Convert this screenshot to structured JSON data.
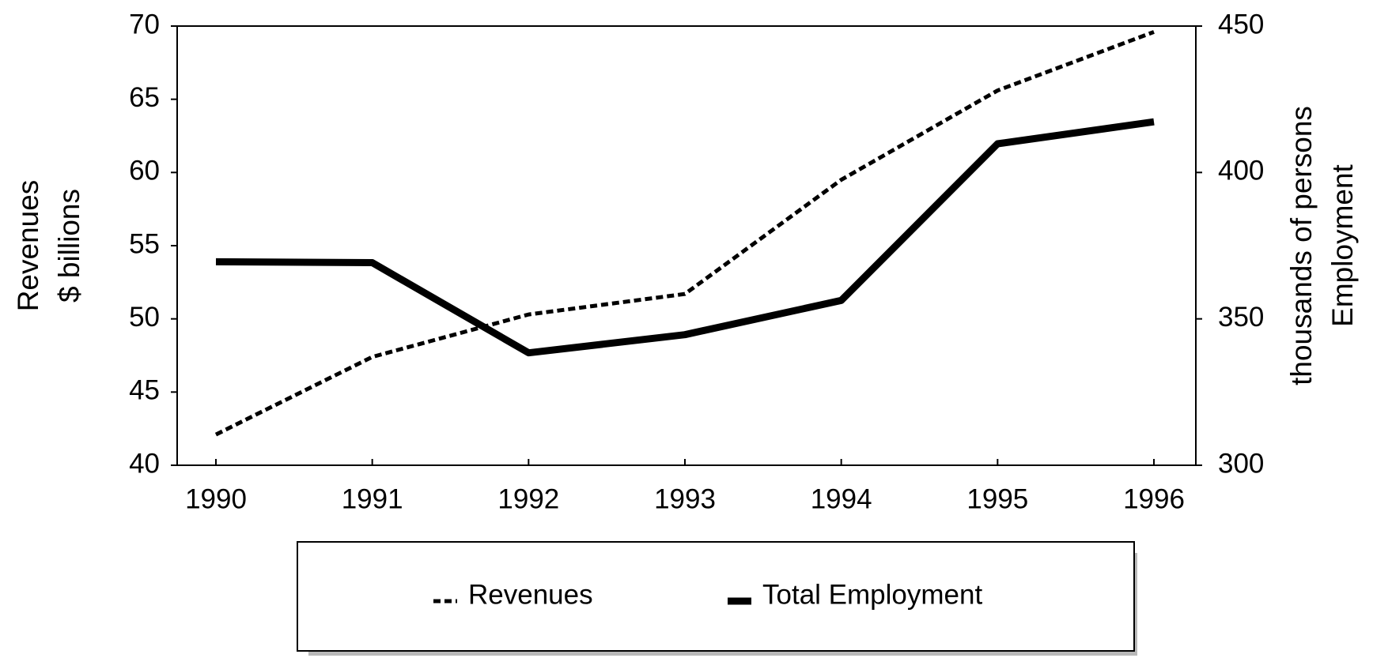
{
  "chart_data": {
    "type": "line",
    "ylabel": "Revenues",
    "ylabel_unit": "$ billions",
    "y2label": "Employment",
    "y2label_unit": "thousands of persons",
    "categories": [
      "1990",
      "1991",
      "1992",
      "1993",
      "1994",
      "1995",
      "1996"
    ],
    "series": [
      {
        "name": "Revenues",
        "color": "#000000",
        "style": "dashed",
        "values": [
          42.1,
          47.4,
          50.3,
          51.7,
          59.5,
          65.6,
          69.6
        ]
      },
      {
        "name": "Total Employment",
        "color": "#000000",
        "style": "solid",
        "axis": "y2",
        "values": [
          369.5,
          369.2,
          338.4,
          344.6,
          356.3,
          409.8,
          417.3
        ]
      }
    ],
    "ylim": [
      40,
      70
    ],
    "yticks": [
      40,
      45,
      50,
      55,
      60,
      65,
      70
    ],
    "y2lim": [
      300,
      450
    ],
    "y2ticks": [
      300,
      350,
      400,
      450
    ],
    "grid": false,
    "legend": "bottom"
  }
}
